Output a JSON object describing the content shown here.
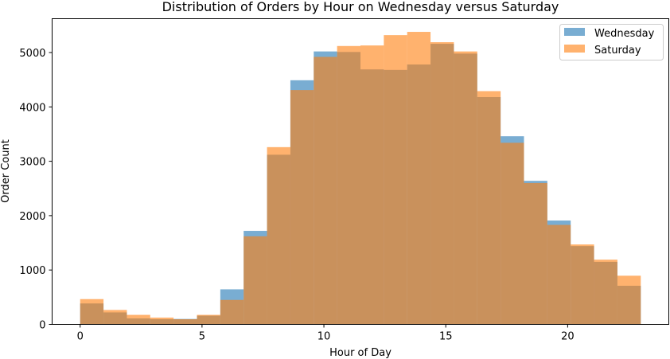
{
  "chart_data": {
    "type": "bar",
    "title": "Distribution of Orders by Hour on Wednesday versus Saturday",
    "xlabel": "Hour of Day",
    "ylabel": "Order Count",
    "xlim": [
      -1.15,
      24.15
    ],
    "ylim": [
      0,
      5622
    ],
    "bin_range": [
      0,
      23
    ],
    "bins": 24,
    "xticks": [
      0,
      5,
      10,
      15,
      20
    ],
    "yticks": [
      0,
      1000,
      2000,
      3000,
      4000,
      5000
    ],
    "grid": false,
    "legend_position": "top-right",
    "series": [
      {
        "name": "Wednesday",
        "color": "#1f77b4",
        "alpha": 0.6,
        "values": [
          385,
          220,
          110,
          95,
          100,
          160,
          645,
          1720,
          3120,
          4490,
          5020,
          5010,
          4690,
          4680,
          4780,
          5160,
          4980,
          4180,
          3460,
          2640,
          1910,
          1440,
          1150,
          710
        ]
      },
      {
        "name": "Saturday",
        "color": "#ff7f0e",
        "alpha": 0.6,
        "values": [
          465,
          265,
          175,
          125,
          95,
          175,
          450,
          1620,
          3260,
          4310,
          4920,
          5120,
          5130,
          5320,
          5380,
          5190,
          5020,
          4290,
          3340,
          2600,
          1830,
          1470,
          1190,
          895
        ]
      }
    ]
  }
}
